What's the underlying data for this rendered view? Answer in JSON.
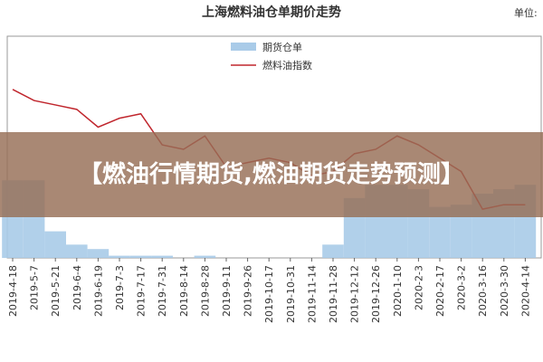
{
  "chart_data": {
    "type": "bar-line",
    "title": "上海燃料油仓单期价走势",
    "unit_label": "单位:",
    "banner": "【燃油行情期货,燃油期货走势预测】",
    "categories": [
      "2019-4-18",
      "2019-5-7",
      "2019-5-21",
      "2019-6-4",
      "2019-6-19",
      "2019-7-3",
      "2019-7-17",
      "2019-7-31",
      "2019-8-14",
      "2019-8-28",
      "2019-9-11",
      "2019-9-26",
      "2019-10-17",
      "2019-10-31",
      "2019-11-14",
      "2019-11-28",
      "2019-12-12",
      "2019-12-26",
      "2020-1-10",
      "2020-2-3",
      "2020-2-17",
      "2020-3-2",
      "2020-3-16",
      "2020-3-30",
      "2020-4-14"
    ],
    "series": [
      {
        "name": "期货仓单",
        "kind": "bar",
        "color": "#a9cbe8",
        "values": [
          35,
          35,
          12,
          6,
          4,
          1,
          1,
          1,
          0,
          1,
          0,
          0,
          0,
          0,
          0,
          6,
          27,
          33,
          33,
          31,
          23,
          24,
          29,
          31,
          33
        ]
      },
      {
        "name": "燃料油指数",
        "kind": "line",
        "color": "#c0262d",
        "values": [
          76,
          71,
          69,
          67,
          59,
          63,
          65,
          51,
          49,
          55,
          41,
          43,
          45,
          43,
          37,
          39,
          47,
          49,
          55,
          51,
          45,
          39,
          22,
          24,
          24
        ]
      }
    ],
    "ylim": [
      0,
      100
    ]
  }
}
